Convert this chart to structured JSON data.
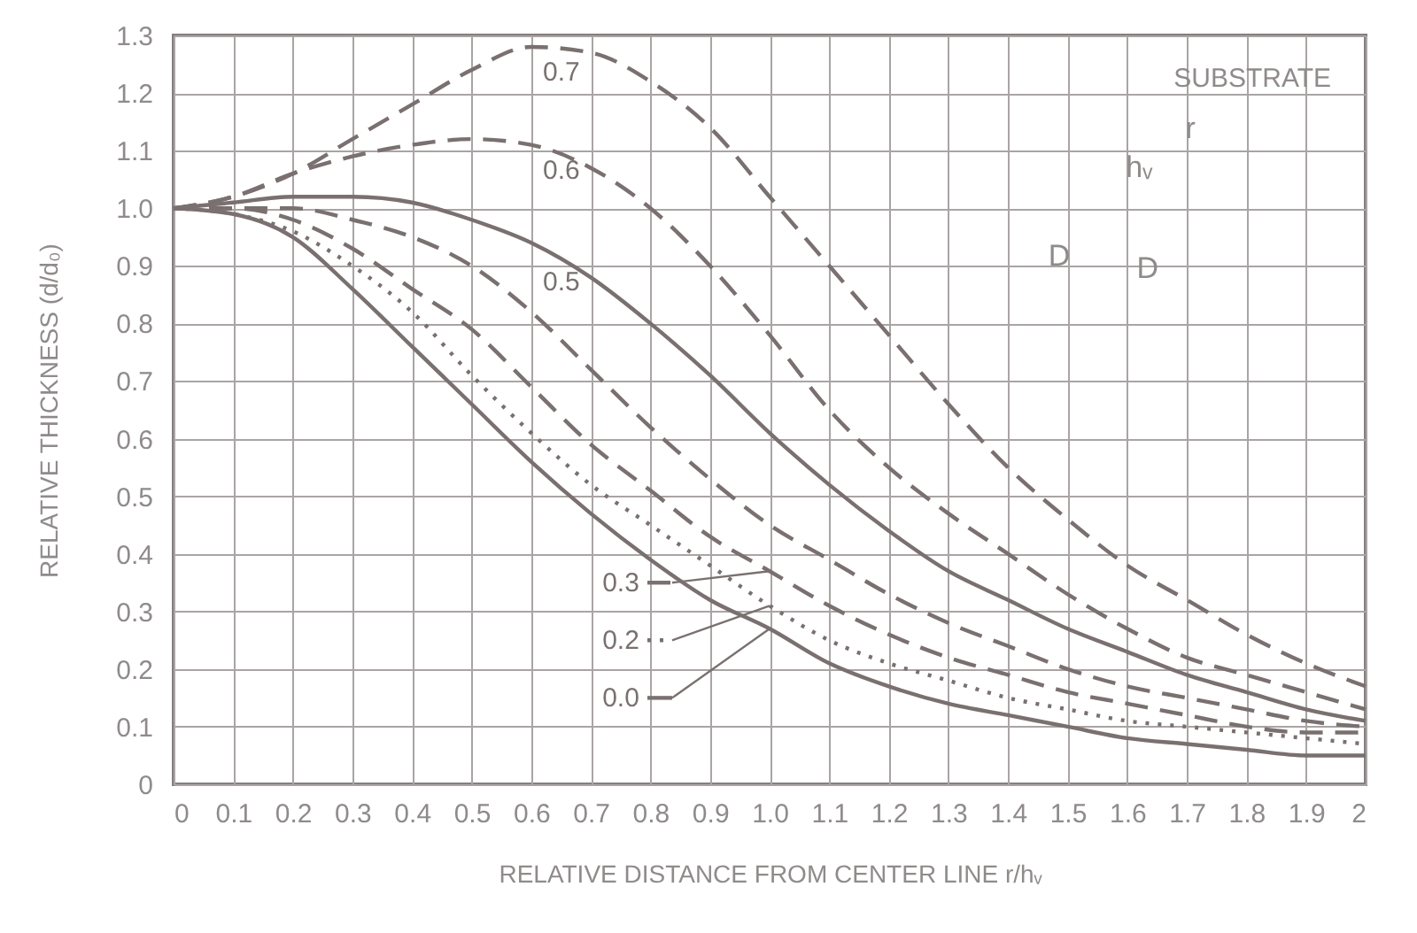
{
  "chart_data": {
    "type": "line",
    "xlabel": "RELATIVE DISTANCE FROM CENTER LINE r/hᵥ",
    "ylabel": "RELATIVE THICKNESS (d/d₀)",
    "x": [
      0,
      0.1,
      0.2,
      0.3,
      0.4,
      0.5,
      0.6,
      0.7,
      0.8,
      0.9,
      1.0,
      1.1,
      1.2,
      1.3,
      1.4,
      1.5,
      1.6,
      1.7,
      1.8,
      1.9,
      2.0
    ],
    "series": [
      {
        "name": "0.7",
        "color": "#7a7070",
        "line_style": "dashed",
        "values": [
          1.0,
          1.02,
          1.06,
          1.12,
          1.18,
          1.24,
          1.28,
          1.27,
          1.22,
          1.14,
          1.02,
          0.9,
          0.78,
          0.66,
          0.55,
          0.46,
          0.38,
          0.32,
          0.26,
          0.21,
          0.17
        ]
      },
      {
        "name": "0.6",
        "color": "#7a7070",
        "line_style": "dashed",
        "values": [
          1.0,
          1.02,
          1.06,
          1.09,
          1.11,
          1.12,
          1.11,
          1.07,
          1.0,
          0.9,
          0.78,
          0.65,
          0.55,
          0.47,
          0.4,
          0.33,
          0.27,
          0.22,
          0.19,
          0.16,
          0.13
        ]
      },
      {
        "name": "0.5",
        "color": "#7a7070",
        "line_style": "solid",
        "values": [
          1.0,
          1.01,
          1.02,
          1.02,
          1.01,
          0.98,
          0.94,
          0.88,
          0.8,
          0.71,
          0.61,
          0.52,
          0.44,
          0.37,
          0.32,
          0.27,
          0.23,
          0.19,
          0.16,
          0.13,
          0.11
        ]
      },
      {
        "color": "#7a7070",
        "line_style": "dashed",
        "values": [
          1.0,
          1.0,
          1.0,
          0.98,
          0.95,
          0.9,
          0.82,
          0.72,
          0.62,
          0.53,
          0.45,
          0.39,
          0.33,
          0.28,
          0.24,
          0.2,
          0.17,
          0.15,
          0.13,
          0.11,
          0.1
        ]
      },
      {
        "name": "0.3",
        "color": "#7a7070",
        "line_style": "dashed",
        "values": [
          1.0,
          1.0,
          0.98,
          0.93,
          0.86,
          0.79,
          0.69,
          0.59,
          0.51,
          0.43,
          0.37,
          0.31,
          0.26,
          0.22,
          0.19,
          0.16,
          0.14,
          0.12,
          0.1,
          0.09,
          0.09
        ]
      },
      {
        "name": "0.2",
        "color": "#7a7070",
        "line_style": "dotted",
        "values": [
          1.0,
          0.99,
          0.96,
          0.9,
          0.82,
          0.71,
          0.61,
          0.52,
          0.45,
          0.38,
          0.31,
          0.25,
          0.21,
          0.18,
          0.15,
          0.13,
          0.11,
          0.1,
          0.09,
          0.08,
          0.07
        ]
      },
      {
        "name": "0.0",
        "color": "#7a7070",
        "line_style": "solid",
        "values": [
          1.0,
          0.99,
          0.95,
          0.86,
          0.76,
          0.66,
          0.56,
          0.47,
          0.39,
          0.32,
          0.27,
          0.21,
          0.17,
          0.14,
          0.12,
          0.1,
          0.08,
          0.07,
          0.06,
          0.05,
          0.05
        ]
      }
    ],
    "xlim": [
      0,
      2
    ],
    "ylim": [
      0,
      1.3
    ],
    "xticks": [
      0,
      0.1,
      0.2,
      0.3,
      0.4,
      0.5,
      0.6,
      0.7,
      0.8,
      0.9,
      {
        "value": 1,
        "label": "1.0"
      },
      1.1,
      1.2,
      1.3,
      1.4,
      1.5,
      1.6,
      1.7,
      1.8,
      1.9,
      2
    ],
    "yticks": [
      0,
      0.1,
      0.2,
      0.3,
      0.4,
      0.5,
      0.6,
      0.7,
      0.8,
      0.9,
      {
        "value": 1,
        "label": "1.0"
      },
      1.1,
      1.2,
      1.3
    ],
    "grid": true,
    "legend": "bottom",
    "annotations": [
      "SUBSTRATE",
      "r",
      "hᵥ",
      "D",
      "D"
    ]
  }
}
